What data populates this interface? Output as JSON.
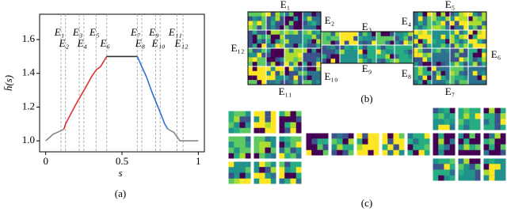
{
  "chart_data": {
    "type": "line",
    "y_label": "h̄(s)",
    "x_label": "s",
    "caption": "(a)",
    "x": [
      0,
      0.05,
      0.1,
      0.12,
      0.13,
      0.2,
      0.27,
      0.3,
      0.33,
      0.36,
      0.4,
      0.45,
      0.5,
      0.55,
      0.6,
      0.63,
      0.66,
      0.7,
      0.75,
      0.78,
      0.8,
      0.84,
      0.88,
      0.9,
      0.95,
      1.0
    ],
    "series": [
      {
        "color": "#888888",
        "values": [
          1.0,
          1.04,
          1.06,
          1.07,
          null,
          null,
          null,
          null,
          null,
          null,
          null,
          null,
          null,
          null,
          null,
          null,
          null,
          null,
          null,
          null,
          1.07,
          1.05,
          1.0,
          1.0,
          1.0,
          1.0
        ]
      },
      {
        "color": "#e03030",
        "values": [
          null,
          null,
          null,
          1.07,
          1.1,
          1.22,
          1.33,
          1.38,
          1.42,
          1.44,
          1.5,
          null,
          null,
          null,
          null,
          null,
          null,
          null,
          null,
          null,
          null,
          null,
          null,
          null,
          null,
          null
        ]
      },
      {
        "color": "#333333",
        "values": [
          null,
          null,
          null,
          null,
          null,
          null,
          null,
          null,
          null,
          null,
          1.5,
          1.5,
          1.5,
          1.5,
          1.5,
          null,
          null,
          null,
          null,
          null,
          null,
          null,
          null,
          null,
          null,
          null
        ]
      },
      {
        "color": "#2f6fd6",
        "values": [
          null,
          null,
          null,
          null,
          null,
          null,
          null,
          null,
          null,
          null,
          null,
          null,
          null,
          null,
          1.5,
          1.44,
          1.38,
          1.28,
          1.17,
          1.1,
          1.07,
          null,
          null,
          null,
          null,
          null
        ]
      }
    ],
    "boundaries": [
      0.1,
      0.13,
      0.22,
      0.25,
      0.33,
      0.4,
      0.6,
      0.63,
      0.72,
      0.75,
      0.86,
      0.9
    ],
    "boundary_labels": [
      "E₁",
      "E₂",
      "E₃",
      "E₄",
      "E₅",
      "E₆",
      "E₇",
      "E₈",
      "E₉",
      "E₁₀",
      "E₁₁",
      "E₁₂"
    ],
    "xlim": [
      -0.04,
      1.04
    ],
    "ylim": [
      0.935,
      1.75
    ],
    "xticks": [
      0,
      0.5,
      1
    ],
    "yticks": [
      {
        "value": 1.0,
        "label": "1.0"
      },
      {
        "value": 1.2,
        "label": "1.2"
      },
      {
        "value": 1.4,
        "label": "1.4"
      },
      {
        "value": 1.6,
        "label": "1.6"
      }
    ]
  },
  "panel_b": {
    "labels": [
      "E₁",
      "E₂",
      "E₃",
      "E₄",
      "E₅",
      "E₆",
      "E₇",
      "E₈",
      "E₉",
      "E₁₀",
      "E₁₁",
      "E₁₂"
    ],
    "caption": "(b)"
  },
  "panel_c": {
    "caption": "(c)"
  }
}
